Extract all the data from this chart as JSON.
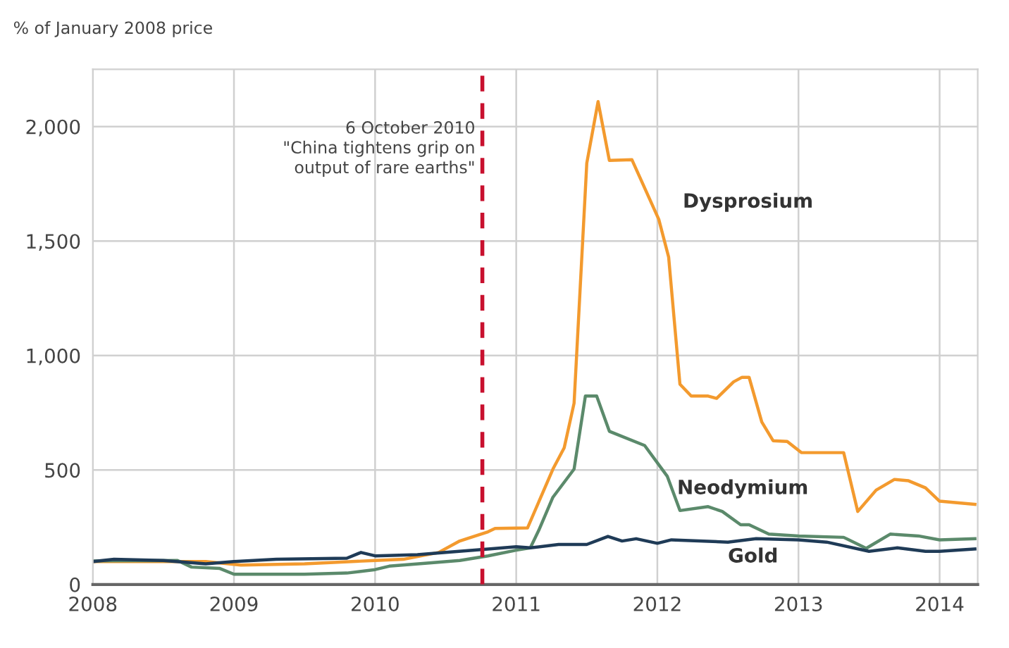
{
  "chart_data": {
    "type": "line",
    "ylabel": "% of January 2008 price",
    "xlim": [
      2008,
      2014.27
    ],
    "xticks": [
      2008,
      2009,
      2010,
      2011,
      2012,
      2013,
      2014
    ],
    "ylim": [
      0,
      2250
    ],
    "yticks": [
      0,
      500,
      {
        "value": 1000,
        "label": "1,000"
      },
      {
        "value": 1500,
        "label": "1,500"
      },
      {
        "value": 2000,
        "label": "2,000"
      }
    ],
    "grid": true,
    "legend": false,
    "line_style": "solid",
    "marker": "none",
    "ref_lines": [
      {
        "axis": "x",
        "value": 2010.76,
        "label": "6 October 2010\n\"China tightens grip on\noutput of rare earths\"",
        "color": "#c8102e",
        "line_style": "dashed"
      }
    ],
    "series": [
      {
        "name": "Dysprosium",
        "color": "#f39a2e",
        "x": [
          2008,
          2008.8,
          2009.05,
          2009.5,
          2010,
          2010.2,
          2010.45,
          2010.6,
          2010.8,
          2010.85,
          2011.08,
          2011.26,
          2011.34,
          2011.41,
          2011.5,
          2011.58,
          2011.66,
          2011.82,
          2012.01,
          2012.08,
          2012.16,
          2012.24,
          2012.36,
          2012.42,
          2012.54,
          2012.6,
          2012.65,
          2012.74,
          2012.82,
          2012.92,
          2013.02,
          2013.32,
          2013.42,
          2013.55,
          2013.68,
          2013.78,
          2013.9,
          2014,
          2014.25
        ],
        "values": [
          100,
          100,
          85,
          90,
          105,
          110,
          140,
          190,
          230,
          245,
          247,
          504,
          597,
          792,
          1840,
          2109,
          1852,
          1855,
          1595,
          1430,
          875,
          823,
          823,
          813,
          885,
          905,
          905,
          710,
          628,
          625,
          576,
          576,
          319,
          412,
          459,
          453,
          422,
          364,
          350
        ]
      },
      {
        "name": "Neodymium",
        "color": "#5b8a6b",
        "x": [
          2008,
          2008.6,
          2008.7,
          2008.9,
          2009,
          2009.5,
          2009.8,
          2010,
          2010.1,
          2010.4,
          2010.6,
          2010.8,
          2011,
          2011.1,
          2011.16,
          2011.26,
          2011.41,
          2011.49,
          2011.57,
          2011.66,
          2011.91,
          2012.07,
          2012.16,
          2012.36,
          2012.46,
          2012.59,
          2012.65,
          2012.79,
          2013,
          2013.32,
          2013.48,
          2013.65,
          2013.85,
          2014,
          2014.25
        ],
        "values": [
          103,
          105,
          76,
          70,
          45,
          45,
          50,
          65,
          80,
          95,
          105,
          125,
          150,
          160,
          237,
          381,
          504,
          823,
          823,
          669,
          607,
          473,
          323,
          340,
          319,
          261,
          261,
          220,
          212,
          206,
          158,
          220,
          212,
          195,
          200
        ]
      },
      {
        "name": "Gold",
        "color": "#1f3b57",
        "x": [
          2008,
          2008.15,
          2008.5,
          2008.8,
          2009,
          2009.3,
          2009.8,
          2009.9,
          2010,
          2010.3,
          2010.5,
          2010.8,
          2011,
          2011.1,
          2011.3,
          2011.5,
          2011.65,
          2011.75,
          2011.85,
          2012,
          2012.1,
          2012.5,
          2012.7,
          2013,
          2013.2,
          2013.5,
          2013.7,
          2013.9,
          2014,
          2014.25
        ],
        "values": [
          100,
          110,
          105,
          90,
          100,
          110,
          115,
          140,
          125,
          130,
          140,
          155,
          165,
          160,
          175,
          175,
          210,
          190,
          200,
          180,
          195,
          185,
          200,
          195,
          185,
          145,
          160,
          145,
          145,
          155
        ]
      }
    ]
  }
}
